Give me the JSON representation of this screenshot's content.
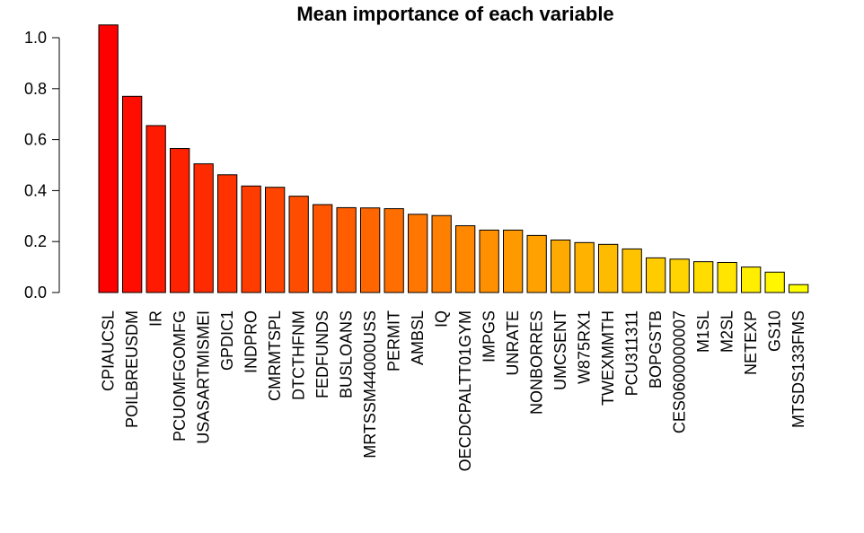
{
  "chart_data": {
    "type": "bar",
    "title": "Mean importance of each variable",
    "xlabel": "",
    "ylabel": "",
    "ylim": [
      0,
      1.05
    ],
    "yticks": [
      "0.0",
      "0.2",
      "0.4",
      "0.6",
      "0.8",
      "1.0"
    ],
    "categories": [
      "CPIAUCSL",
      "POILBREUSDM",
      "IR",
      "PCUOMFGOMFG",
      "USASARTMISMEI",
      "GPDIC1",
      "INDPRO",
      "CMRMTSPL",
      "DTCTHFNM",
      "FEDFUNDS",
      "BUSLOANS",
      "MRTSSM44000USS",
      "PERMIT",
      "AMBSL",
      "IQ",
      "OECDCPALTT01GYM",
      "IMPGS",
      "UNRATE",
      "NONBORRES",
      "UMCSENT",
      "W875RX1",
      "TWEXMMTH",
      "PCU311311",
      "BOPGSTB",
      "CES0600000007",
      "M1SL",
      "M2SL",
      "NETEXP",
      "GS10",
      "MTSDS133FMS"
    ],
    "values": [
      1.05,
      0.77,
      0.655,
      0.565,
      0.505,
      0.462,
      0.418,
      0.413,
      0.378,
      0.345,
      0.333,
      0.332,
      0.329,
      0.307,
      0.302,
      0.262,
      0.245,
      0.245,
      0.224,
      0.206,
      0.196,
      0.189,
      0.171,
      0.136,
      0.131,
      0.121,
      0.118,
      0.1,
      0.08,
      0.031
    ],
    "colors": [
      "#ff0000",
      "#ff0d00",
      "#ff1a00",
      "#ff2200",
      "#ff2b00",
      "#ff3300",
      "#ff3c00",
      "#ff4400",
      "#ff4d00",
      "#ff5500",
      "#ff5d00",
      "#ff6600",
      "#ff6e00",
      "#ff7700",
      "#ff7f00",
      "#ff8800",
      "#ff9000",
      "#ff9900",
      "#ffa100",
      "#ffaa00",
      "#ffb200",
      "#ffbb00",
      "#ffc300",
      "#ffcc00",
      "#ffd400",
      "#ffdd00",
      "#ffe500",
      "#ffee00",
      "#fff600",
      "#ffff00"
    ],
    "grid": false,
    "legend": "none"
  }
}
